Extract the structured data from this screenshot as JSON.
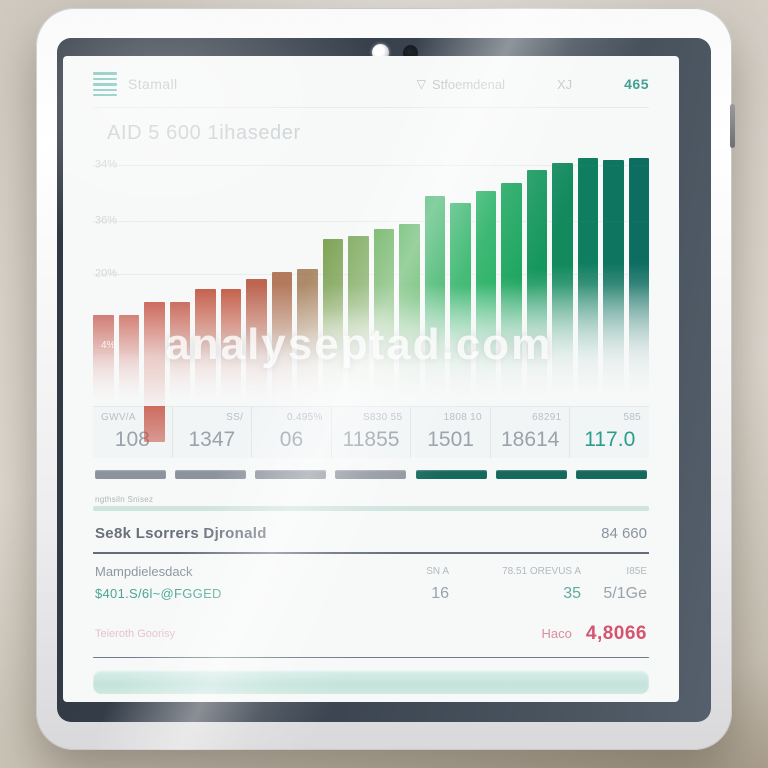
{
  "photo": {
    "watermark": "analyseptad.com"
  },
  "topbar": {
    "menu_label": "Stamall",
    "filter_icon": "funnel-icon",
    "filter_label": "Stfoemdenal",
    "secondary_label": "XJ",
    "count": "465"
  },
  "header": {
    "title": "AID 5 600 1ihaseder"
  },
  "chart_data": {
    "type": "bar",
    "title": "AID 5 600 1ihaseder",
    "xlabel": "",
    "ylabel": "",
    "ylim": [
      0,
      100
    ],
    "grid": true,
    "legend_position": "none",
    "y_ticks": [
      {
        "label": "34%",
        "pos": 5
      },
      {
        "label": "36%",
        "pos": 27
      },
      {
        "label": "20%",
        "pos": 48
      }
    ],
    "bar_annotation": {
      "label": "4%",
      "bar_index": 0
    },
    "values": [
      36,
      36,
      41,
      41,
      46,
      46,
      50,
      53,
      54,
      66,
      67,
      70,
      72,
      83,
      80,
      85,
      88,
      93,
      96,
      98,
      97,
      98
    ],
    "colors": [
      "#bf4538",
      "#c24b3c",
      "#c34a3a",
      "#c1503f",
      "#c35a45",
      "#c25a44",
      "#bd6550",
      "#b47a5e",
      "#ad8a68",
      "#7fa558",
      "#7ca95c",
      "#63ad58",
      "#52b05a",
      "#2fae5e",
      "#27b061",
      "#1fae5f",
      "#18a45c",
      "#15975d",
      "#128a5e",
      "#0f7d5f",
      "#0e7560",
      "#0d6d60"
    ],
    "overhang": {
      "index": 2,
      "px": 36
    },
    "note": "heights estimated as percent of plot height; bars fade to white at base"
  },
  "stats": {
    "columns": [
      {
        "label": "GWV/A",
        "value": "108"
      },
      {
        "label": "SS/",
        "value": "1347"
      },
      {
        "label": "0.495%",
        "value": "06"
      },
      {
        "label": "S830 55",
        "value": "11855"
      },
      {
        "label": "1808 10",
        "value": "1501"
      },
      {
        "label": "68291",
        "value": "18614"
      },
      {
        "label": "585",
        "value": "117.0",
        "accent": true
      }
    ]
  },
  "pager": {
    "segments": [
      "gray",
      "gray",
      "gray",
      "gray",
      "teal",
      "teal",
      "teal"
    ],
    "colors": {
      "gray": "#8d939d",
      "teal": "#17695d"
    }
  },
  "list": {
    "section_label": "ngthsiln Snisez",
    "row1": {
      "label": "Se8k Lsorrers Djronald",
      "value": "84 660"
    },
    "row2": {
      "label": "Mampdielesdack",
      "col1": "SN A",
      "col2": "78.51 OREVUS A",
      "col3": "I85E"
    },
    "row3": {
      "label": "$401.S/6l~@FGGED",
      "col1": "16",
      "col2": "35",
      "col3": "5/1Ge"
    },
    "row4": {
      "label": "Teieroth Goorisy",
      "value_label": "Haco",
      "value": "4,8066"
    }
  },
  "colors": {
    "accent_teal": "#2a9d8f",
    "count_teal": "#43a094",
    "pink": "#d5556e",
    "pager_gray": "#8d939d",
    "pager_teal": "#17695d"
  }
}
